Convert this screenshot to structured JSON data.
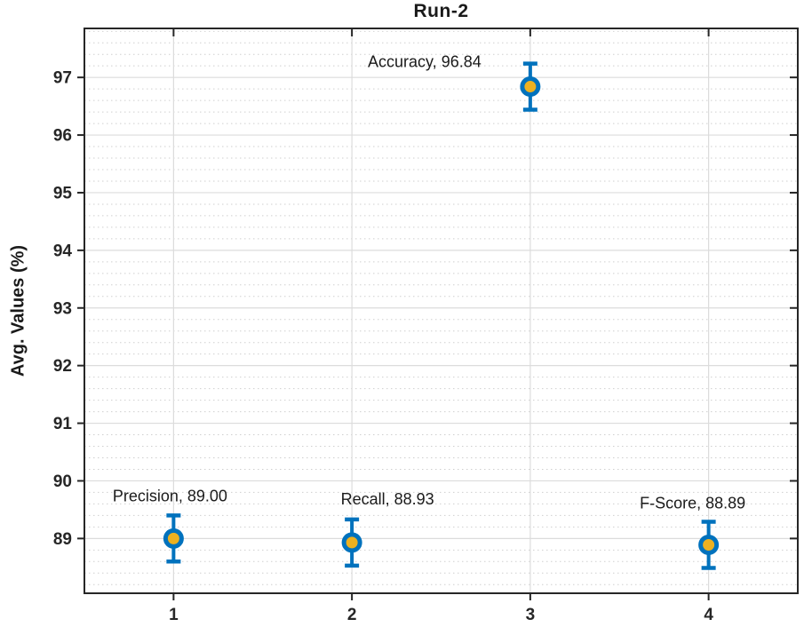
{
  "chart_data": {
    "type": "scatter",
    "title": "Run-2",
    "xlabel": "",
    "ylabel": "Avg. Values (%)",
    "xlim": [
      0.5,
      4.5
    ],
    "ylim": [
      88.05,
      97.85
    ],
    "xticks": [
      "1",
      "2",
      "3",
      "4"
    ],
    "yticks": [
      "89",
      "90",
      "91",
      "92",
      "93",
      "94",
      "95",
      "96",
      "97"
    ],
    "y_minor_step": 0.2,
    "grid": "major-solid",
    "y_minor_grid": "dotted",
    "legend_position": "none",
    "points": [
      {
        "name": "Precision",
        "x": 1,
        "value": 89.0,
        "error": 0.4,
        "label": "Precision, 89.00",
        "label_offset": [
          -4,
          -42
        ]
      },
      {
        "name": "Recall",
        "x": 2,
        "value": 88.93,
        "error": 0.4,
        "label": "Recall, 88.93",
        "label_offset": [
          40,
          -43
        ]
      },
      {
        "name": "Accuracy",
        "x": 3,
        "value": 96.84,
        "error": 0.4,
        "label": "Accuracy, 96.84",
        "label_offset": [
          -119,
          -22
        ]
      },
      {
        "name": "F-Score",
        "x": 4,
        "value": 88.89,
        "error": 0.4,
        "label": "F-Score, 88.89",
        "label_offset": [
          -18,
          -41
        ]
      }
    ],
    "colors": {
      "marker_fill": "#EDB120",
      "marker_edge": "#0072BD",
      "error_bar": "#0072BD",
      "major_grid": "#DCDCDC",
      "minor_grid": "#CFCFCF",
      "axis": "#262626",
      "text": "#1A1A1A",
      "background": "#FFFFFF"
    }
  }
}
